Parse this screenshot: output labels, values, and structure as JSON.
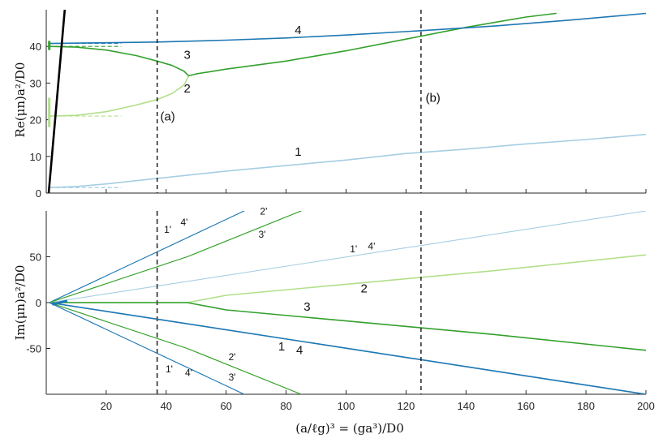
{
  "chart_data": [
    {
      "type": "line",
      "panel": "top",
      "ylabel": "Re(μn)a²/D0",
      "xlim": [
        0,
        200
      ],
      "ylim": [
        0,
        50
      ],
      "yticks": [
        "0",
        "10",
        "20",
        "30",
        "40"
      ],
      "series": [
        {
          "name": "1",
          "color": "#a6cee3",
          "x": [
            1,
            10,
            20,
            37,
            60,
            80,
            100,
            120,
            140,
            160,
            180,
            200
          ],
          "y": [
            1.5,
            1.8,
            2.5,
            4.0,
            6.0,
            7.5,
            9.0,
            10.8,
            12.0,
            13.4,
            14.6,
            16.0
          ]
        },
        {
          "name": "2",
          "color": "#b2df8a",
          "x": [
            1,
            10,
            20,
            30,
            37,
            42,
            46,
            47.5
          ],
          "y": [
            21,
            21.2,
            22.2,
            24.0,
            25.5,
            27.2,
            29.5,
            32
          ]
        },
        {
          "name": "3",
          "color": "#33a02c",
          "x": [
            1,
            10,
            20,
            30,
            37,
            42,
            46,
            47.5,
            50,
            60,
            80,
            100,
            120,
            140,
            160,
            170
          ],
          "y": [
            40,
            39.8,
            39.0,
            37.5,
            36.0,
            34.8,
            33.2,
            32,
            32.5,
            33.8,
            36.0,
            38.8,
            42.0,
            45.2,
            48.0,
            49
          ]
        },
        {
          "name": "4",
          "color": "#1f78b4",
          "x": [
            1,
            20,
            37,
            60,
            80,
            100,
            125,
            150,
            175,
            200
          ],
          "y": [
            40.8,
            41.0,
            41.2,
            41.7,
            42.3,
            43.1,
            44.3,
            45.6,
            47.2,
            49
          ]
        },
        {
          "name": "",
          "color": "#000000",
          "x": [
            0.8,
            6.5
          ],
          "y": [
            0,
            53
          ]
        }
      ],
      "short_dashed": [
        {
          "color": "#a6cee3",
          "x": [
            1,
            25
          ],
          "y": [
            1.5,
            1.5
          ]
        },
        {
          "color": "#b2df8a",
          "x": [
            1,
            25
          ],
          "y": [
            21,
            21
          ]
        },
        {
          "color": "#33a02c",
          "x": [
            1,
            25
          ],
          "y": [
            40,
            40
          ]
        },
        {
          "color": "#1f78b4",
          "x": [
            1,
            25
          ],
          "y": [
            40.8,
            40.8
          ]
        }
      ],
      "vlines": [
        37,
        125
      ],
      "annotations": [
        {
          "text": "4",
          "x": 84,
          "y": 43.4
        },
        {
          "text": "3",
          "x": 47,
          "y": 36.6
        },
        {
          "text": "2",
          "x": 47,
          "y": 27.4
        },
        {
          "text": "(a)",
          "x": 40.5,
          "y": 19.8
        },
        {
          "text": "(b)",
          "x": 129,
          "y": 24.9
        },
        {
          "text": "1",
          "x": 84,
          "y": 10.2
        }
      ]
    },
    {
      "type": "line",
      "panel": "bottom",
      "ylabel": "Im(μn)a²/D0",
      "xlabel": "(a/ℓg)³ = (ga³)/D0",
      "xlim": [
        0,
        200
      ],
      "ylim": [
        -100,
        100
      ],
      "xticks": [
        "20",
        "40",
        "60",
        "80",
        "100",
        "120",
        "140",
        "160",
        "180",
        "200"
      ],
      "yticks": [
        "50",
        "0",
        "-50"
      ],
      "series": [
        {
          "name": "1'",
          "color": "#a6cee3",
          "x": [
            1,
            66
          ],
          "y": [
            0,
            100
          ]
        },
        {
          "name": "4'",
          "color": "#1f78b4",
          "x": [
            1,
            66
          ],
          "y": [
            0,
            100
          ]
        },
        {
          "name": "2'",
          "color": "#b2df8a",
          "x": [
            1,
            47,
            85
          ],
          "y": [
            0,
            50,
            100
          ]
        },
        {
          "name": "3'",
          "color": "#33a02c",
          "x": [
            1,
            47,
            85
          ],
          "y": [
            0,
            50,
            100
          ]
        },
        {
          "name": "1' 4'",
          "color": "#a6cee3",
          "x": [
            1,
            200
          ],
          "y": [
            0,
            100
          ]
        },
        {
          "name": "2",
          "color": "#b2df8a",
          "x": [
            1,
            47,
            60,
            100,
            150,
            200
          ],
          "y": [
            0,
            0,
            8,
            20,
            35,
            52
          ]
        },
        {
          "name": "3",
          "color": "#33a02c",
          "x": [
            1,
            47,
            60,
            100,
            150,
            200
          ],
          "y": [
            0,
            0,
            -8,
            -20,
            -35,
            -52
          ]
        },
        {
          "name": "1",
          "color": "#a6cee3",
          "x": [
            1,
            200
          ],
          "y": [
            0,
            -100
          ]
        },
        {
          "name": "4",
          "color": "#1f78b4",
          "x": [
            1,
            200
          ],
          "y": [
            0,
            -100
          ]
        },
        {
          "name": "2'",
          "color": "#b2df8a",
          "x": [
            1,
            47,
            85
          ],
          "y": [
            0,
            -50,
            -100
          ]
        },
        {
          "name": "3'",
          "color": "#33a02c",
          "x": [
            1,
            47,
            85
          ],
          "y": [
            0,
            -50,
            -100
          ]
        },
        {
          "name": "1'",
          "color": "#a6cee3",
          "x": [
            1,
            66
          ],
          "y": [
            0,
            -100
          ]
        },
        {
          "name": "4'",
          "color": "#1f78b4",
          "x": [
            1,
            66
          ],
          "y": [
            0,
            -100
          ]
        }
      ],
      "vlines": [
        37,
        125
      ],
      "annotations": [
        {
          "text": "1'",
          "x": 40.5,
          "y": 76
        },
        {
          "text": "4'",
          "x": 46,
          "y": 84
        },
        {
          "text": "2'",
          "x": 72.5,
          "y": 96
        },
        {
          "text": "3'",
          "x": 72,
          "y": 71
        },
        {
          "text": "1'",
          "x": 102.5,
          "y": 55
        },
        {
          "text": "4'",
          "x": 108.5,
          "y": 58
        },
        {
          "text": "2",
          "x": 106,
          "y": 11
        },
        {
          "text": "3",
          "x": 87,
          "y": -9
        },
        {
          "text": "1",
          "x": 78.5,
          "y": -52
        },
        {
          "text": "4",
          "x": 84.5,
          "y": -56
        },
        {
          "text": "2'",
          "x": 62,
          "y": -63
        },
        {
          "text": "1'",
          "x": 41,
          "y": -76
        },
        {
          "text": "4'",
          "x": 47.5,
          "y": -80
        },
        {
          "text": "3'",
          "x": 62,
          "y": -85
        }
      ]
    }
  ]
}
